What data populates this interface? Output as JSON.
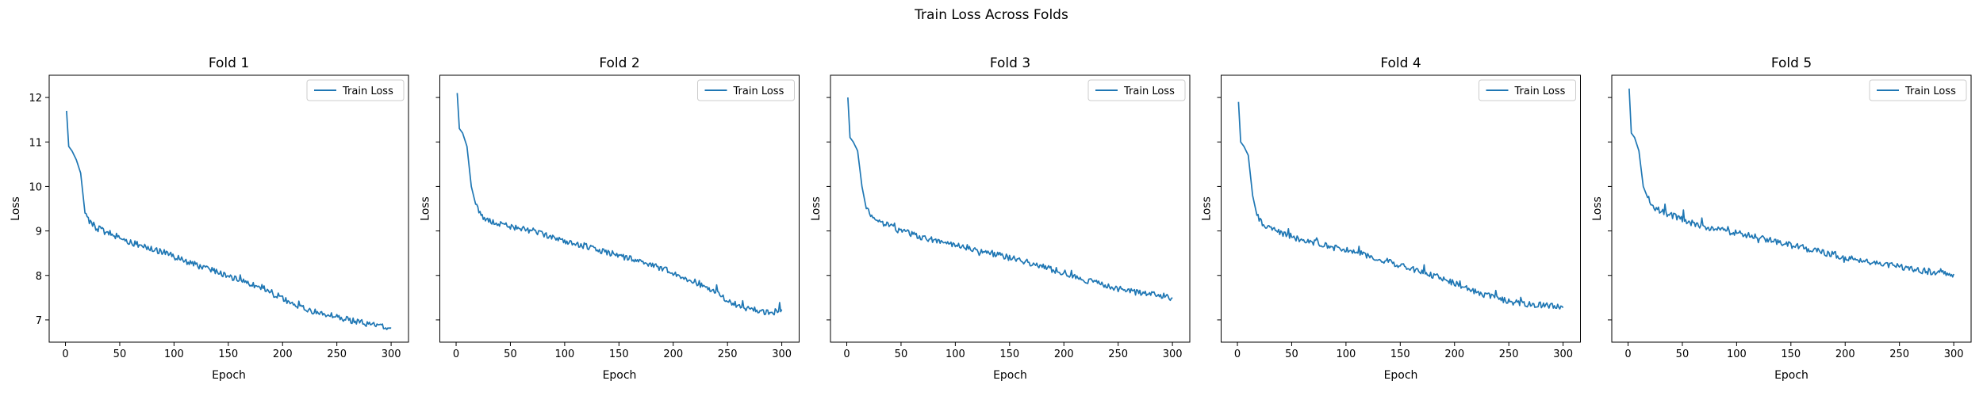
{
  "figure": {
    "suptitle": "Train Loss Across Folds"
  },
  "chart_data": [
    {
      "type": "line",
      "title": "Fold 1",
      "xlabel": "Epoch",
      "ylabel": "Loss",
      "xlim": [
        -15,
        316
      ],
      "ylim": [
        6.5,
        12.5
      ],
      "xticks": [
        0,
        50,
        100,
        150,
        200,
        250,
        300
      ],
      "yticks": [
        7,
        8,
        9,
        10,
        11,
        12
      ],
      "legend": "top-right",
      "series": [
        {
          "name": "Train Loss",
          "color": "#1f77b4",
          "x": [
            1,
            3,
            6,
            10,
            14,
            18,
            22,
            26,
            30,
            40,
            50,
            60,
            70,
            80,
            90,
            100,
            110,
            120,
            130,
            140,
            150,
            160,
            170,
            180,
            190,
            200,
            210,
            220,
            230,
            240,
            250,
            260,
            270,
            280,
            290,
            300
          ],
          "y": [
            11.7,
            10.9,
            10.8,
            10.6,
            10.3,
            9.4,
            9.2,
            9.1,
            9.05,
            8.95,
            8.85,
            8.75,
            8.67,
            8.6,
            8.52,
            8.42,
            8.32,
            8.24,
            8.15,
            8.07,
            7.98,
            7.9,
            7.82,
            7.74,
            7.62,
            7.48,
            7.36,
            7.25,
            7.18,
            7.12,
            7.07,
            7.0,
            6.96,
            6.9,
            6.85,
            6.82
          ]
        }
      ]
    },
    {
      "type": "line",
      "title": "Fold 2",
      "xlabel": "Epoch",
      "ylabel": "Loss",
      "xlim": [
        -15,
        316
      ],
      "ylim": [
        6.5,
        12.5
      ],
      "xticks": [
        0,
        50,
        100,
        150,
        200,
        250,
        300
      ],
      "yticks": [
        7,
        8,
        9,
        10,
        11,
        12
      ],
      "legend": "top-right",
      "series": [
        {
          "name": "Train Loss",
          "color": "#1f77b4",
          "x": [
            1,
            3,
            6,
            10,
            14,
            18,
            22,
            26,
            30,
            40,
            50,
            60,
            70,
            80,
            90,
            100,
            110,
            120,
            130,
            140,
            150,
            160,
            170,
            180,
            190,
            200,
            210,
            220,
            230,
            240,
            250,
            260,
            270,
            280,
            290,
            300
          ],
          "y": [
            12.1,
            11.3,
            11.2,
            10.9,
            10.0,
            9.6,
            9.4,
            9.3,
            9.25,
            9.15,
            9.1,
            9.05,
            9.0,
            8.93,
            8.85,
            8.78,
            8.72,
            8.65,
            8.58,
            8.52,
            8.45,
            8.38,
            8.3,
            8.22,
            8.15,
            8.05,
            7.95,
            7.85,
            7.72,
            7.6,
            7.45,
            7.32,
            7.25,
            7.2,
            7.15,
            7.25
          ]
        }
      ]
    },
    {
      "type": "line",
      "title": "Fold 3",
      "xlabel": "Epoch",
      "ylabel": "Loss",
      "xlim": [
        -15,
        316
      ],
      "ylim": [
        6.5,
        12.5
      ],
      "xticks": [
        0,
        50,
        100,
        150,
        200,
        250,
        300
      ],
      "yticks": [
        7,
        8,
        9,
        10,
        11,
        12
      ],
      "legend": "top-right",
      "series": [
        {
          "name": "Train Loss",
          "color": "#1f77b4",
          "x": [
            1,
            3,
            6,
            10,
            14,
            18,
            22,
            26,
            30,
            40,
            50,
            60,
            70,
            80,
            90,
            100,
            110,
            120,
            130,
            140,
            150,
            160,
            170,
            180,
            190,
            200,
            210,
            220,
            230,
            240,
            250,
            260,
            270,
            280,
            290,
            300
          ],
          "y": [
            12.0,
            11.1,
            11.0,
            10.8,
            10.0,
            9.5,
            9.35,
            9.25,
            9.2,
            9.1,
            9.0,
            8.93,
            8.86,
            8.8,
            8.74,
            8.68,
            8.63,
            8.58,
            8.52,
            8.46,
            8.4,
            8.33,
            8.27,
            8.2,
            8.13,
            8.06,
            7.98,
            7.9,
            7.83,
            7.76,
            7.7,
            7.65,
            7.6,
            7.58,
            7.55,
            7.5
          ]
        }
      ]
    },
    {
      "type": "line",
      "title": "Fold 4",
      "xlabel": "Epoch",
      "ylabel": "Loss",
      "xlim": [
        -15,
        316
      ],
      "ylim": [
        6.5,
        12.5
      ],
      "xticks": [
        0,
        50,
        100,
        150,
        200,
        250,
        300
      ],
      "yticks": [
        7,
        8,
        9,
        10,
        11,
        12
      ],
      "legend": "top-right",
      "series": [
        {
          "name": "Train Loss",
          "color": "#1f77b4",
          "x": [
            1,
            3,
            6,
            10,
            14,
            18,
            22,
            26,
            30,
            40,
            50,
            60,
            70,
            80,
            90,
            100,
            110,
            120,
            130,
            140,
            150,
            160,
            170,
            180,
            190,
            200,
            210,
            220,
            230,
            240,
            250,
            260,
            270,
            280,
            290,
            300
          ],
          "y": [
            11.9,
            11.0,
            10.9,
            10.7,
            9.8,
            9.35,
            9.2,
            9.1,
            9.05,
            8.95,
            8.87,
            8.8,
            8.74,
            8.68,
            8.62,
            8.57,
            8.52,
            8.45,
            8.38,
            8.3,
            8.23,
            8.16,
            8.08,
            8.0,
            7.92,
            7.83,
            7.73,
            7.63,
            7.55,
            7.48,
            7.42,
            7.38,
            7.35,
            7.33,
            7.3,
            7.32
          ]
        }
      ]
    },
    {
      "type": "line",
      "title": "Fold 5",
      "xlabel": "Epoch",
      "ylabel": "Loss",
      "xlim": [
        -15,
        316
      ],
      "ylim": [
        6.5,
        12.5
      ],
      "xticks": [
        0,
        50,
        100,
        150,
        200,
        250,
        300
      ],
      "yticks": [
        7,
        8,
        9,
        10,
        11,
        12
      ],
      "legend": "top-right",
      "series": [
        {
          "name": "Train Loss",
          "color": "#1f77b4",
          "x": [
            1,
            3,
            6,
            10,
            14,
            18,
            22,
            26,
            30,
            40,
            50,
            60,
            70,
            80,
            90,
            100,
            110,
            120,
            130,
            140,
            150,
            160,
            170,
            180,
            190,
            200,
            210,
            220,
            230,
            240,
            250,
            260,
            270,
            280,
            290,
            300
          ],
          "y": [
            12.2,
            11.2,
            11.1,
            10.8,
            10.0,
            9.75,
            9.6,
            9.5,
            9.45,
            9.35,
            9.25,
            9.17,
            9.1,
            9.05,
            9.0,
            8.95,
            8.9,
            8.85,
            8.8,
            8.74,
            8.68,
            8.62,
            8.57,
            8.52,
            8.46,
            8.41,
            8.36,
            8.31,
            8.27,
            8.23,
            8.19,
            8.15,
            8.11,
            8.08,
            8.05,
            8.03
          ]
        }
      ]
    }
  ]
}
